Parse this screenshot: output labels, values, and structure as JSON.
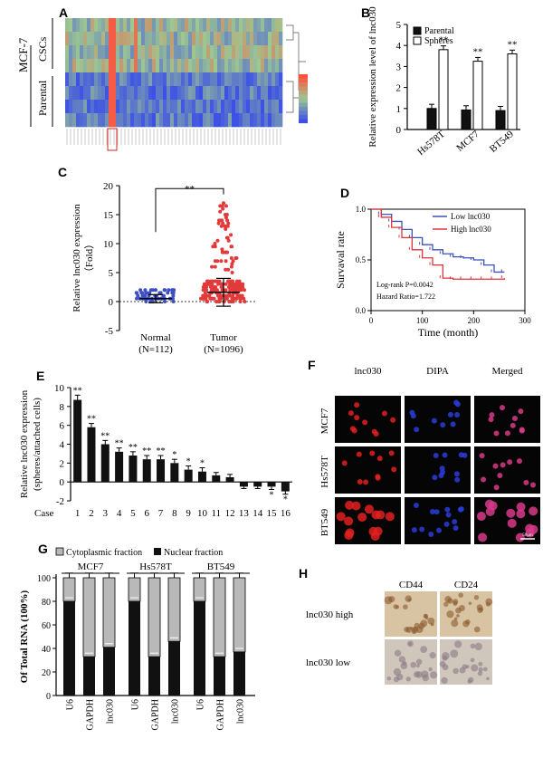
{
  "panel_letters": [
    "A",
    "B",
    "C",
    "D",
    "E",
    "F",
    "G",
    "H"
  ],
  "colors": {
    "red": "#e23a3a",
    "blue": "#3e4fc2",
    "black": "#111111",
    "gray": "#b9b9b9",
    "km_blue": "#3b52b7",
    "km_red": "#e0343a"
  },
  "panelA": {
    "row_group_labels": {
      "cscs": "CSCs",
      "parental": "Parental",
      "cell": "MCF-7"
    },
    "heatmap_note": "heatmap of expression (red high, blue low)"
  },
  "chart_data": [
    {
      "panel": "B",
      "type": "bar",
      "categories": [
        "Hs578T",
        "MCF7",
        "BT549"
      ],
      "series": [
        {
          "name": "Parental",
          "values": [
            1.0,
            0.93,
            0.9
          ],
          "errors": [
            0.2,
            0.2,
            0.2
          ]
        },
        {
          "name": "Spheres",
          "values": [
            3.8,
            3.25,
            3.6
          ],
          "errors": [
            0.18,
            0.18,
            0.18
          ]
        }
      ],
      "significance": [
        "**",
        "**",
        "**"
      ],
      "ylabel": "Relative expression level of lnc030",
      "ylim": [
        0,
        5
      ],
      "yticks": [
        "0",
        "1",
        "2",
        "3",
        "4",
        "5"
      ]
    },
    {
      "panel": "C",
      "type": "scatter",
      "categories": [
        "Normal",
        "Tumor"
      ],
      "category_sub": [
        "(N=112)",
        "(N=1096)"
      ],
      "ylabel": "Relative lnc030  expression",
      "ylabel2": "（Fold）",
      "ylim": [
        -5,
        20
      ],
      "yticks": [
        "-5",
        "0",
        "5",
        "10",
        "15",
        "20"
      ],
      "series": [
        {
          "name": "Normal",
          "mean": 0.5,
          "sd": 0.7,
          "ymin": 0.0,
          "ymax": 2.0
        },
        {
          "name": "Tumor",
          "mean": 1.6,
          "sd": 2.4,
          "ymin": 0.0,
          "ymax": 17.0
        }
      ],
      "significance": "**"
    },
    {
      "panel": "D",
      "type": "line",
      "xlabel": "Time (month)",
      "ylabel": "Survaval rate",
      "xlim": [
        0,
        300
      ],
      "ylim": [
        0,
        1.0
      ],
      "xticks": [
        "0",
        "100",
        "200",
        "300"
      ],
      "yticks": [
        "0.0",
        "0.5",
        "1.0"
      ],
      "series": [
        {
          "name": "Low lnc030",
          "x": [
            0,
            20,
            40,
            60,
            80,
            100,
            120,
            140,
            160,
            180,
            200,
            220,
            240,
            260
          ],
          "y": [
            1.0,
            0.95,
            0.88,
            0.8,
            0.72,
            0.65,
            0.6,
            0.56,
            0.53,
            0.52,
            0.5,
            0.45,
            0.38,
            0.38
          ]
        },
        {
          "name": "High lnc030",
          "x": [
            0,
            20,
            40,
            60,
            80,
            100,
            120,
            140,
            160,
            180,
            200,
            220,
            240,
            260
          ],
          "y": [
            1.0,
            0.92,
            0.82,
            0.72,
            0.6,
            0.52,
            0.45,
            0.32,
            0.31,
            0.31,
            0.31,
            0.31,
            0.31,
            0.32
          ]
        }
      ],
      "annotations": [
        "Log-rank P=0.0042",
        "Hazard Ratio=1.722"
      ]
    },
    {
      "panel": "E",
      "type": "bar",
      "categories": [
        "1",
        "2",
        "3",
        "4",
        "5",
        "6",
        "7",
        "8",
        "9",
        "10",
        "11",
        "12",
        "13",
        "14",
        "15",
        "16"
      ],
      "xlabel_prefix": "Case",
      "values": [
        8.7,
        5.8,
        4.0,
        3.2,
        2.8,
        2.4,
        2.4,
        2.0,
        1.3,
        1.1,
        0.7,
        0.5,
        -0.5,
        -0.5,
        -0.5,
        -1.0
      ],
      "errors": [
        0.5,
        0.4,
        0.4,
        0.4,
        0.4,
        0.4,
        0.4,
        0.4,
        0.4,
        0.4,
        0.3,
        0.3,
        0.2,
        0.2,
        0.3,
        0.3
      ],
      "significance": [
        "**",
        "**",
        "**",
        "**",
        "**",
        "**",
        "**",
        "*",
        "*",
        "*",
        "",
        "",
        "",
        "",
        "*",
        "*"
      ],
      "ylabel": "Relative lnc030  expression",
      "ylabel2": "(spheres/attached cells)",
      "ylim": [
        -2,
        10
      ],
      "yticks": [
        "-2",
        "0",
        "2",
        "4",
        "6",
        "8",
        "10"
      ]
    },
    {
      "panel": "G",
      "type": "bar",
      "stacked": true,
      "groups": [
        "MCF7",
        "Hs578T",
        "BT549"
      ],
      "categories": [
        "U6",
        "GAPDH",
        "lnc030"
      ],
      "series": [
        {
          "name": "Cytoplasmic fraction",
          "values": [
            [
              20,
              67,
              59
            ],
            [
              20,
              67,
              54
            ],
            [
              20,
              67,
              63
            ]
          ]
        },
        {
          "name": "Nuclear fraction",
          "values": [
            [
              80,
              33,
              41
            ],
            [
              80,
              33,
              46
            ],
            [
              80,
              33,
              37
            ]
          ]
        }
      ],
      "ylabel": "Of Total RNA (100%)",
      "ylim": [
        0,
        100
      ],
      "yticks": [
        "0",
        "20",
        "40",
        "60",
        "80",
        "100"
      ]
    }
  ],
  "panelF": {
    "columns": [
      "lnc030",
      "DIPA",
      "Merged"
    ],
    "rows": [
      "MCF7",
      "Hs578T",
      "BT549"
    ],
    "scale": "50μm"
  },
  "panelH": {
    "columns": [
      "CD44",
      "CD24"
    ],
    "rows": [
      "lnc030 high",
      "lnc030 low"
    ]
  }
}
